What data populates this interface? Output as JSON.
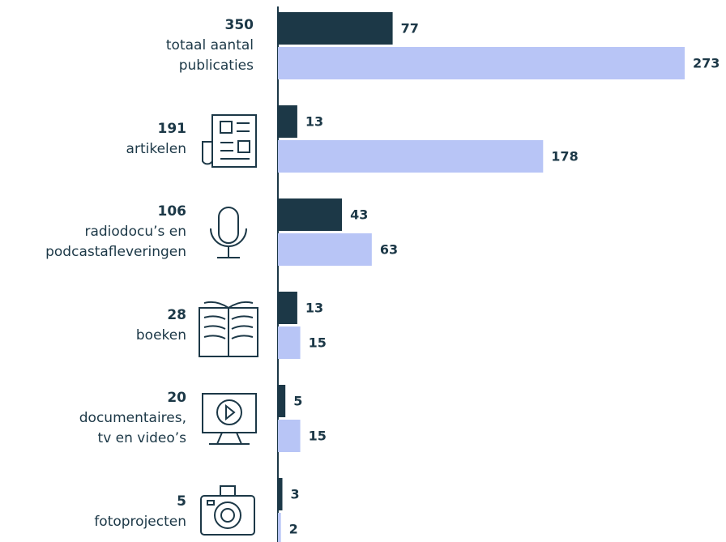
{
  "chart_data": {
    "type": "bar",
    "orientation": "horizontal",
    "categories": [
      "totaal aantal\npublicaties",
      "artikelen",
      "radiodocu’s en\npodcastafleveringen",
      "boeken",
      "documentaires,\ntv en video’s",
      "fotoprojecten"
    ],
    "totals": [
      350,
      191,
      106,
      28,
      20,
      5
    ],
    "series": [
      {
        "color": "#1c3847",
        "values": [
          77,
          13,
          43,
          13,
          5,
          3
        ]
      },
      {
        "color": "#b8c5f6",
        "values": [
          273,
          178,
          63,
          15,
          15,
          2
        ]
      }
    ]
  }
}
